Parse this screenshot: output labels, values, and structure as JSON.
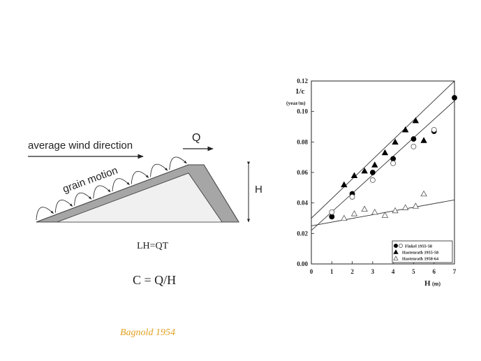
{
  "diagram": {
    "wind_label": "average wind direction",
    "grain_label": "grain motion",
    "q_label": "Q",
    "h_label": "H",
    "equation_lh": "LH=QT",
    "equation_c": "C = Q/H",
    "citation": "Bagnold 1954"
  },
  "colors": {
    "dune_face": "#e6e6e6",
    "slip_face": "#a6a6a6",
    "citation": "#e0a020"
  },
  "chart_data": {
    "type": "scatter",
    "xlabel": "H",
    "xunit": "(m)",
    "ylabel": "1/c",
    "yunit": "(year/m)",
    "xlim": [
      0,
      7
    ],
    "ylim": [
      0,
      0.12
    ],
    "x_ticks": [
      "0",
      "1",
      "2",
      "3",
      "4",
      "5",
      "6",
      "7"
    ],
    "y_ticks": [
      "0.00",
      "0.02",
      "0.04",
      "0.06",
      "0.08",
      "0.10",
      "0.12"
    ],
    "legend_position": "bottom-right",
    "series": [
      {
        "name": "Finkel 1955-58",
        "marker": "circle-filled",
        "points": [
          [
            1,
            0.031
          ],
          [
            2,
            0.046
          ],
          [
            3,
            0.06
          ],
          [
            4,
            0.069
          ],
          [
            5,
            0.082
          ],
          [
            6,
            0.087
          ],
          [
            7,
            0.109
          ]
        ]
      },
      {
        "name": "Finkel 1955-58",
        "marker": "circle-open",
        "points": [
          [
            1,
            0.034
          ],
          [
            2,
            0.044
          ],
          [
            3,
            0.055
          ],
          [
            4,
            0.066
          ],
          [
            5,
            0.077
          ],
          [
            6,
            0.088
          ]
        ]
      },
      {
        "name": "Hastenrath 1955-58",
        "marker": "triangle-filled",
        "points": [
          [
            1.6,
            0.052
          ],
          [
            2.1,
            0.058
          ],
          [
            2.6,
            0.061
          ],
          [
            3.1,
            0.065
          ],
          [
            3.6,
            0.073
          ],
          [
            4.1,
            0.08
          ],
          [
            4.6,
            0.088
          ],
          [
            5.1,
            0.094
          ],
          [
            5.5,
            0.081
          ]
        ]
      },
      {
        "name": "Hastenrath 1958-64",
        "marker": "triangle-open",
        "points": [
          [
            1.6,
            0.03
          ],
          [
            2.1,
            0.033
          ],
          [
            2.6,
            0.036
          ],
          [
            3.1,
            0.034
          ],
          [
            3.6,
            0.032
          ],
          [
            4.1,
            0.035
          ],
          [
            4.6,
            0.037
          ],
          [
            5.1,
            0.038
          ],
          [
            5.5,
            0.046
          ]
        ]
      }
    ],
    "fit_lines": [
      {
        "from": [
          0,
          0.022
        ],
        "to": [
          7,
          0.107
        ]
      },
      {
        "from": [
          0,
          0.03
        ],
        "to": [
          7,
          0.12
        ]
      },
      {
        "from": [
          0,
          0.025
        ],
        "to": [
          7,
          0.042
        ]
      }
    ]
  }
}
